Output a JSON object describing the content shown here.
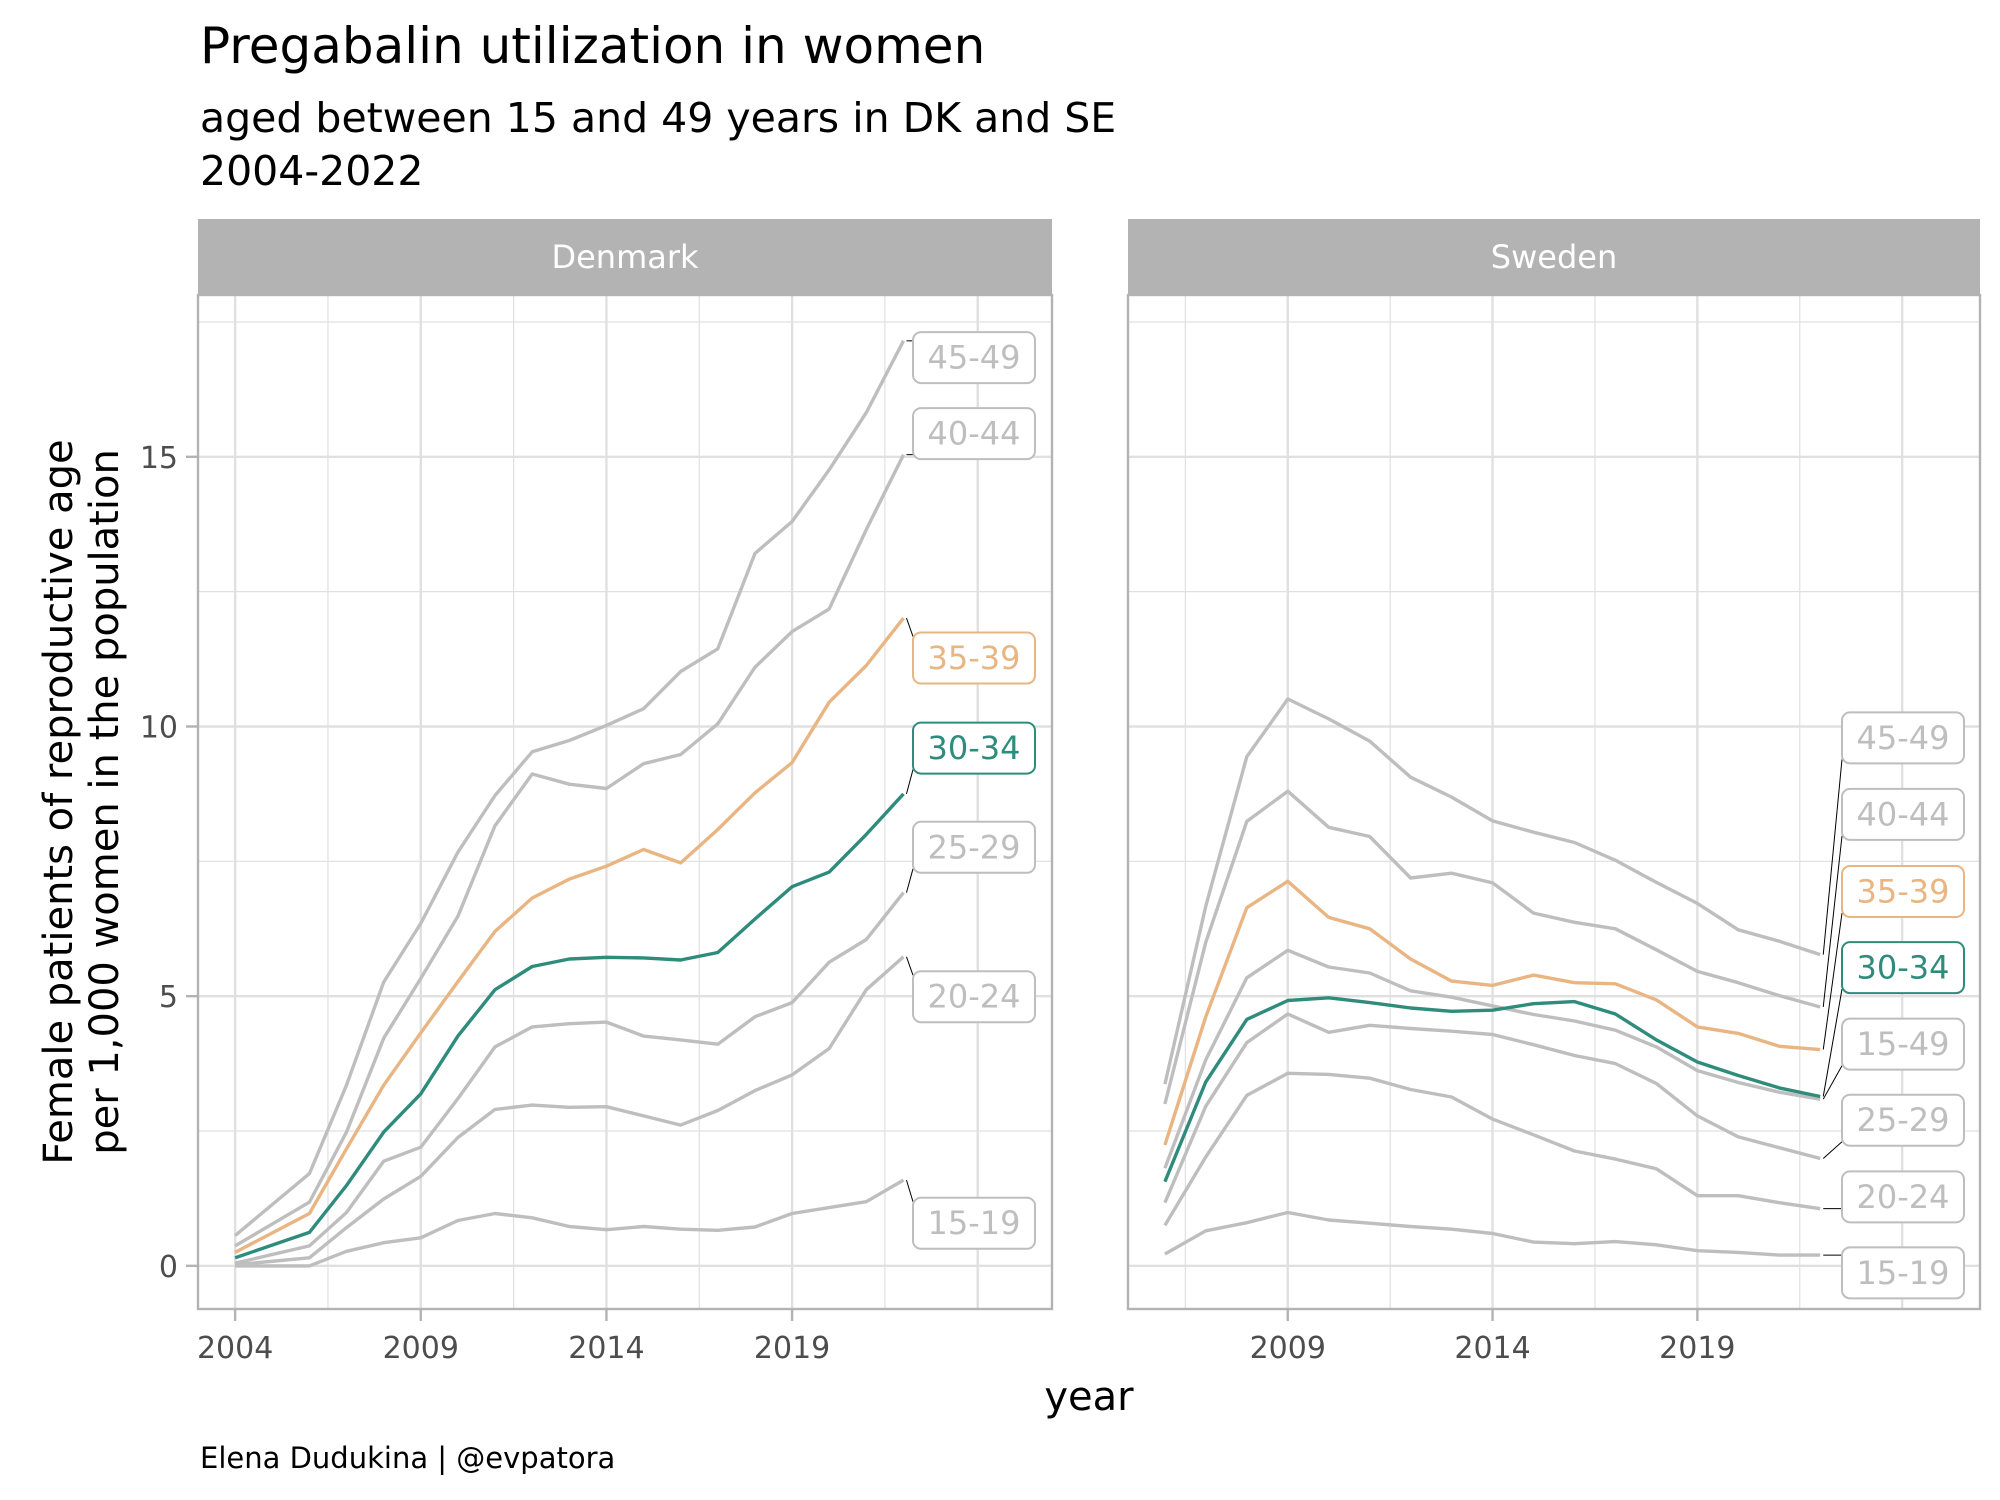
{
  "chart_data": {
    "type": "line",
    "title": "Pregabalin utilization in women",
    "subtitle_lines": [
      "aged between 15 and 49 years in DK and SE",
      "2004-2022"
    ],
    "xlabel": "year",
    "ylabel_lines": [
      "Female patients of reproductive age",
      "per 1,000 women in the population"
    ],
    "caption": "Elena Dudukina | @evpatora",
    "ylim": [
      -0.8,
      18.0
    ],
    "y_ticks": [
      0,
      5,
      10,
      15
    ],
    "y_tick_labels": [
      "0",
      "5",
      "10",
      "15"
    ],
    "grid": true,
    "legend": "none (direct labels at line ends)",
    "colors": {
      "highlight_35_39": "#E8B583",
      "highlight_30_34": "#2F8C7C",
      "other": "#BEBEBE",
      "strip_bg": "#B3B3B3",
      "strip_text": "#FFFFFF",
      "grid": "#E0E0E0",
      "panel_border": "#B3B3B3"
    },
    "panels": [
      {
        "name": "Denmark",
        "xlim": [
          2003,
          2026
        ],
        "x_ticks": [
          2004,
          2009,
          2014,
          2019
        ],
        "x_tick_labels": [
          "2004",
          "2009",
          "2014",
          "2019"
        ],
        "years": [
          2004,
          2006,
          2007,
          2008,
          2009,
          2010,
          2011,
          2012,
          2013,
          2014,
          2015,
          2016,
          2017,
          2018,
          2019,
          2020,
          2021,
          2022
        ],
        "series": [
          {
            "name": "45-49",
            "highlight": false,
            "values": [
              0.56,
              1.71,
              3.35,
              5.26,
              6.35,
              7.67,
              8.72,
              9.53,
              9.74,
              10.02,
              10.33,
              11.02,
              11.44,
              13.21,
              13.8,
              14.76,
              15.82,
              17.15
            ]
          },
          {
            "name": "40-44",
            "highlight": false,
            "values": [
              0.37,
              1.18,
              2.48,
              4.22,
              5.33,
              6.48,
              8.16,
              9.12,
              8.93,
              8.85,
              9.31,
              9.48,
              10.05,
              11.1,
              11.76,
              12.18,
              13.65,
              15.04
            ]
          },
          {
            "name": "35-39",
            "highlight": true,
            "values": [
              0.25,
              0.97,
              2.17,
              3.35,
              4.32,
              5.27,
              6.2,
              6.82,
              7.17,
              7.41,
              7.72,
              7.47,
              8.09,
              8.77,
              9.33,
              10.45,
              11.13,
              12.01
            ]
          },
          {
            "name": "30-34",
            "highlight": true,
            "values": [
              0.15,
              0.62,
              1.49,
              2.48,
              3.19,
              4.26,
              5.12,
              5.55,
              5.69,
              5.72,
              5.71,
              5.67,
              5.81,
              6.43,
              7.03,
              7.3,
              8.0,
              8.75
            ]
          },
          {
            "name": "25-29",
            "highlight": false,
            "values": [
              0.05,
              0.37,
              0.99,
              1.94,
              2.2,
              3.1,
              4.06,
              4.43,
              4.49,
              4.52,
              4.26,
              4.19,
              4.11,
              4.62,
              4.88,
              5.63,
              6.05,
              6.92
            ]
          },
          {
            "name": "20-24",
            "highlight": false,
            "values": [
              0.02,
              0.15,
              0.71,
              1.24,
              1.66,
              2.38,
              2.9,
              2.98,
              2.94,
              2.95,
              2.78,
              2.61,
              2.88,
              3.25,
              3.54,
              4.03,
              5.12,
              5.73
            ]
          },
          {
            "name": "15-19",
            "highlight": false,
            "values": [
              0.0,
              0.0,
              0.27,
              0.43,
              0.52,
              0.84,
              0.97,
              0.89,
              0.73,
              0.67,
              0.73,
              0.68,
              0.66,
              0.72,
              0.97,
              1.08,
              1.19,
              1.59
            ]
          }
        ],
        "label_order": [
          "45-49",
          "40-44",
          "35-39",
          "30-34",
          "25-29",
          "20-24",
          "15-19"
        ],
        "label_values": [
          16.84,
          15.43,
          11.27,
          9.6,
          7.76,
          4.99,
          0.79
        ]
      },
      {
        "name": "Sweden",
        "xlim": [
          2005.1,
          2025.9
        ],
        "x_ticks": [
          2009,
          2014,
          2019
        ],
        "x_tick_labels": [
          "2009",
          "2014",
          "2019"
        ],
        "years": [
          2006,
          2007,
          2008,
          2009,
          2010,
          2011,
          2012,
          2013,
          2014,
          2015,
          2016,
          2017,
          2018,
          2019,
          2020,
          2021,
          2022
        ],
        "series": [
          {
            "name": "45-49",
            "highlight": false,
            "values": [
              3.37,
              6.67,
              9.44,
              10.51,
              10.14,
              9.73,
              9.06,
              8.69,
              8.25,
              8.04,
              7.85,
              7.52,
              7.11,
              6.72,
              6.23,
              6.02,
              5.77
            ]
          },
          {
            "name": "40-44",
            "highlight": false,
            "values": [
              3.0,
              6.0,
              8.24,
              8.8,
              8.13,
              7.96,
              7.19,
              7.28,
              7.1,
              6.54,
              6.37,
              6.25,
              5.86,
              5.46,
              5.25,
              5.01,
              4.8
            ]
          },
          {
            "name": "35-39",
            "highlight": true,
            "values": [
              2.24,
              4.62,
              6.64,
              7.13,
              6.46,
              6.25,
              5.69,
              5.28,
              5.2,
              5.39,
              5.25,
              5.23,
              4.93,
              4.43,
              4.31,
              4.07,
              4.01
            ]
          },
          {
            "name": "15-49",
            "highlight": false,
            "values": [
              1.81,
              3.82,
              5.34,
              5.85,
              5.54,
              5.43,
              5.1,
              4.98,
              4.82,
              4.66,
              4.54,
              4.37,
              4.06,
              3.62,
              3.4,
              3.22,
              3.09
            ]
          },
          {
            "name": "30-34",
            "highlight": true,
            "values": [
              1.56,
              3.41,
              4.57,
              4.92,
              4.97,
              4.88,
              4.78,
              4.72,
              4.74,
              4.86,
              4.9,
              4.67,
              4.19,
              3.78,
              3.53,
              3.3,
              3.14
            ]
          },
          {
            "name": "25-29",
            "highlight": false,
            "values": [
              1.17,
              2.96,
              4.14,
              4.67,
              4.33,
              4.46,
              4.4,
              4.35,
              4.29,
              4.1,
              3.9,
              3.75,
              3.38,
              2.78,
              2.39,
              2.19,
              1.99
            ]
          },
          {
            "name": "20-24",
            "highlight": false,
            "values": [
              0.75,
              2.02,
              3.16,
              3.57,
              3.55,
              3.48,
              3.27,
              3.13,
              2.72,
              2.43,
              2.13,
              1.98,
              1.8,
              1.3,
              1.3,
              1.17,
              1.06
            ]
          },
          {
            "name": "15-19",
            "highlight": false,
            "values": [
              0.22,
              0.65,
              0.8,
              0.99,
              0.85,
              0.79,
              0.73,
              0.68,
              0.6,
              0.44,
              0.41,
              0.45,
              0.39,
              0.28,
              0.25,
              0.2,
              0.2
            ]
          }
        ],
        "label_order": [
          "45-49",
          "40-44",
          "35-39",
          "30-34",
          "15-49",
          "25-29",
          "20-24",
          "15-19"
        ],
        "label_values": [
          9.79,
          8.37,
          6.94,
          5.53,
          4.11,
          2.7,
          1.28,
          -0.13
        ]
      }
    ]
  }
}
